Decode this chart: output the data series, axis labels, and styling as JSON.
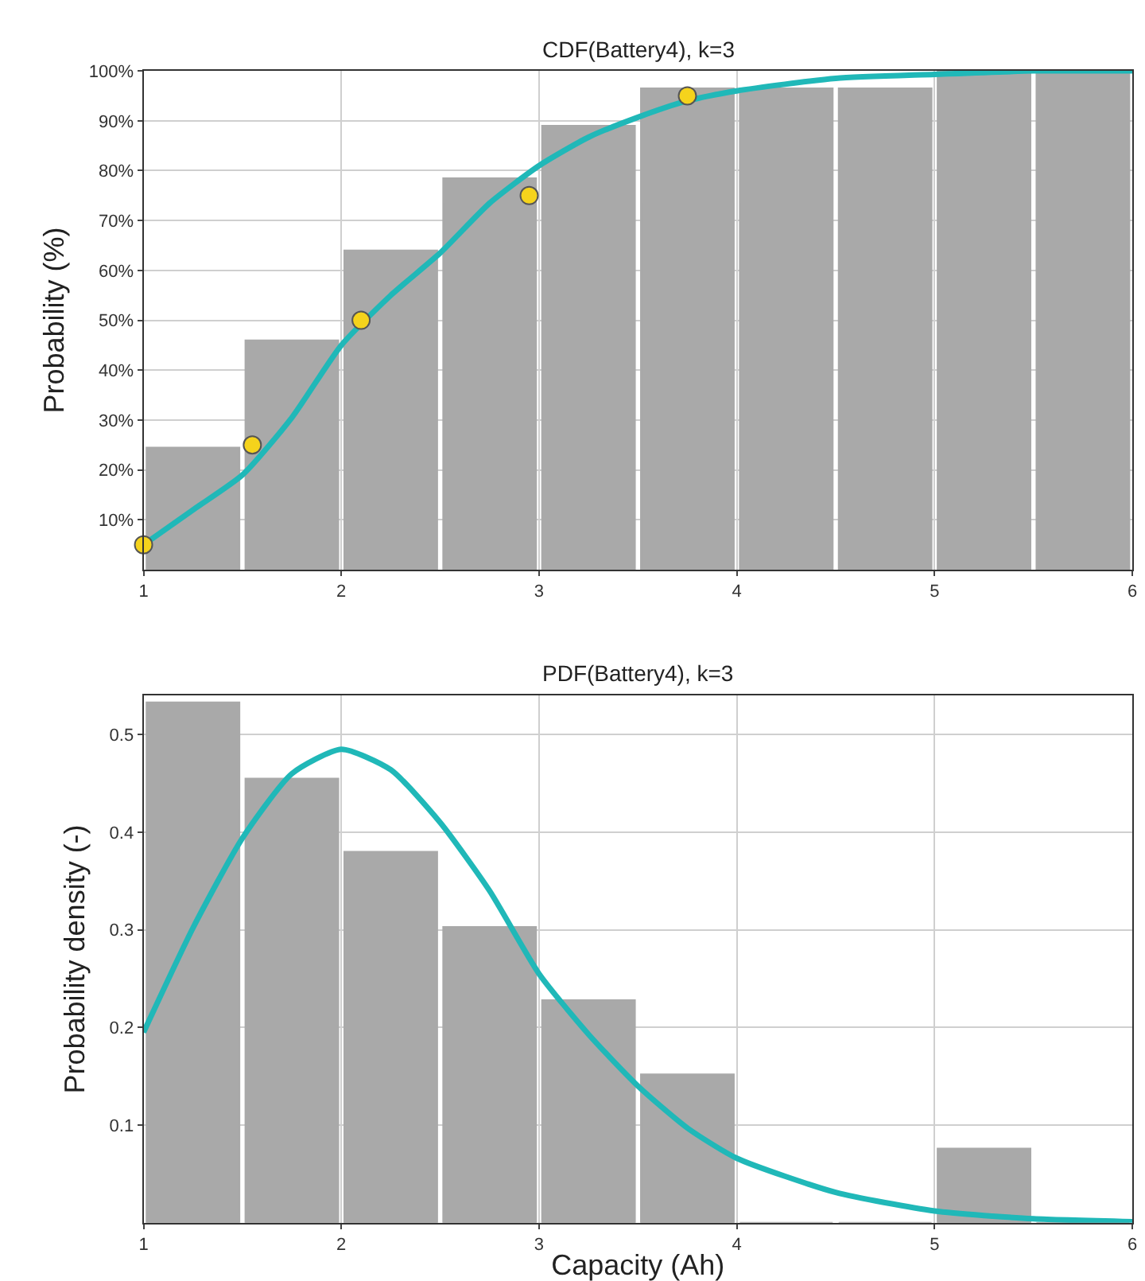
{
  "chart_data": [
    {
      "type": "histogram",
      "title": "CDF(Battery4), k=3",
      "ylabel": "Probability (%)",
      "xlim": [
        1,
        6
      ],
      "xticks": [
        1,
        2,
        3,
        4,
        5,
        6
      ],
      "ylim": [
        0,
        100
      ],
      "yticks": [
        {
          "value": 10,
          "label": "10%"
        },
        {
          "value": 20,
          "label": "20%"
        },
        {
          "value": 30,
          "label": "30%"
        },
        {
          "value": 40,
          "label": "40%"
        },
        {
          "value": 50,
          "label": "50%"
        },
        {
          "value": 60,
          "label": "60%"
        },
        {
          "value": 70,
          "label": "70%"
        },
        {
          "value": 80,
          "label": "80%"
        },
        {
          "value": 90,
          "label": "90%"
        },
        {
          "value": 100,
          "label": "100%"
        }
      ],
      "grid": true,
      "bins": [
        1,
        1.5,
        2,
        2.5,
        3,
        3.5,
        4,
        4.5,
        5,
        5.5,
        6
      ],
      "series": [
        {
          "color": "#a9a9a9",
          "values": [
            24.5,
            46,
            64,
            78.5,
            89,
            96.5,
            96.5,
            96.5,
            100,
            100
          ]
        },
        {
          "type": "line",
          "color": "#20b8b8",
          "x": [
            1,
            1.25,
            1.5,
            1.75,
            2,
            2.25,
            2.5,
            2.75,
            3,
            3.25,
            3.5,
            3.75,
            4,
            4.5,
            5,
            5.5,
            6
          ],
          "values": [
            5,
            12,
            19,
            30.5,
            45,
            55,
            63.5,
            73.5,
            81,
            86.7,
            90.7,
            94,
            96,
            98.5,
            99.3,
            100,
            100
          ]
        },
        {
          "type": "scatter",
          "color": "#f5d31c",
          "marker": "circle",
          "x": [
            1,
            1.55,
            2.1,
            2.95,
            3.75
          ],
          "values": [
            5,
            25,
            50,
            75,
            95
          ]
        }
      ]
    },
    {
      "type": "histogram",
      "title": "PDF(Battery4), k=3",
      "xlabel": "Capacity (Ah)",
      "ylabel": "Probability density (-)",
      "xlim": [
        1,
        6
      ],
      "xticks": [
        1,
        2,
        3,
        4,
        5,
        6
      ],
      "ylim": [
        0,
        0.54
      ],
      "yticks": [
        0.1,
        0.2,
        0.3,
        0.4,
        0.5
      ],
      "grid": true,
      "bins": [
        1,
        1.5,
        2,
        2.5,
        3,
        3.5,
        4,
        4.5,
        5,
        5.5,
        6
      ],
      "series": [
        {
          "color": "#a9a9a9",
          "values": [
            0.533,
            0.455,
            0.38,
            0.303,
            0.228,
            0.152,
            0,
            0,
            0.076,
            0
          ]
        },
        {
          "type": "line",
          "color": "#20b8b8",
          "x": [
            1,
            1.25,
            1.5,
            1.75,
            2,
            2.25,
            2.5,
            2.75,
            3,
            3.25,
            3.5,
            3.75,
            4,
            4.5,
            5,
            5.5,
            6
          ],
          "values": [
            0.195,
            0.302,
            0.394,
            0.46,
            0.485,
            0.464,
            0.41,
            0.34,
            0.255,
            0.193,
            0.14,
            0.097,
            0.066,
            0.031,
            0.012,
            0.004,
            0.001
          ]
        }
      ]
    }
  ]
}
